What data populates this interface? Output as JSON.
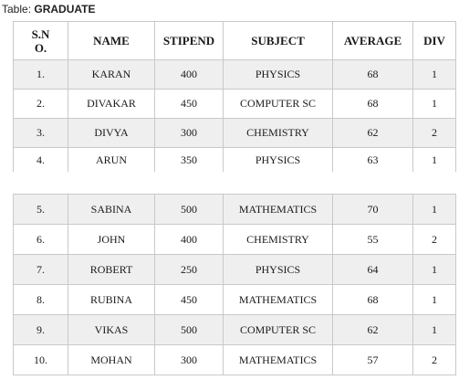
{
  "caption": {
    "prefix": "Table: ",
    "name": "GRADUATE"
  },
  "columns": [
    "S.N\nO.",
    "NAME",
    "STIPEND",
    "SUBJECT",
    "AVERAGE",
    "DIV"
  ],
  "rows": [
    {
      "sno": "1.",
      "name": "KARAN",
      "stipend": "400",
      "subject": "PHYSICS",
      "average": "68",
      "div": "1"
    },
    {
      "sno": "2.",
      "name": "DIVAKAR",
      "stipend": "450",
      "subject": "COMPUTER SC",
      "average": "68",
      "div": "1"
    },
    {
      "sno": "3.",
      "name": "DIVYA",
      "stipend": "300",
      "subject": "CHEMISTRY",
      "average": "62",
      "div": "2"
    },
    {
      "sno": "4.",
      "name": "ARUN",
      "stipend": "350",
      "subject": "PHYSICS",
      "average": "63",
      "div": "1"
    },
    {
      "sno": "5.",
      "name": "SABINA",
      "stipend": "500",
      "subject": "MATHEMATICS",
      "average": "70",
      "div": "1"
    },
    {
      "sno": "6.",
      "name": "JOHN",
      "stipend": "400",
      "subject": "CHEMISTRY",
      "average": "55",
      "div": "2"
    },
    {
      "sno": "7.",
      "name": "ROBERT",
      "stipend": "250",
      "subject": "PHYSICS",
      "average": "64",
      "div": "1"
    },
    {
      "sno": "8.",
      "name": "RUBINA",
      "stipend": "450",
      "subject": "MATHEMATICS",
      "average": "68",
      "div": "1"
    },
    {
      "sno": "9.",
      "name": "VIKAS",
      "stipend": "500",
      "subject": "COMPUTER SC",
      "average": "62",
      "div": "1"
    },
    {
      "sno": "10.",
      "name": "MOHAN",
      "stipend": "300",
      "subject": "MATHEMATICS",
      "average": "57",
      "div": "2"
    }
  ]
}
